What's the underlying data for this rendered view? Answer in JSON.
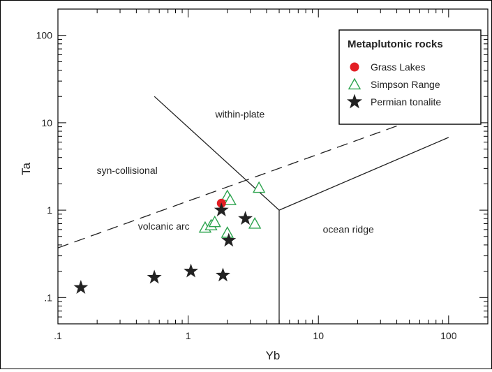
{
  "chart_data": {
    "type": "scatter",
    "title": "",
    "xlabel": "Yb",
    "ylabel": "Ta",
    "xscale": "log",
    "yscale": "log",
    "xlim": [
      0.1,
      200
    ],
    "ylim": [
      0.05,
      200
    ],
    "x_tick_labels": [
      ".1",
      "1",
      "10",
      "100"
    ],
    "x_tick_values": [
      0.1,
      1,
      10,
      100
    ],
    "y_tick_labels": [
      ".1",
      "1",
      "10",
      "100"
    ],
    "y_tick_values": [
      0.1,
      1,
      10,
      100
    ],
    "grid": false,
    "legend": {
      "position": "top-right",
      "title": "Metaplutonic rocks"
    },
    "colors": {
      "grass_lakes": "#e31e24",
      "simpson_range": "#2ea44f",
      "permian_tonalite": "#222222"
    },
    "region_labels": [
      {
        "text": "within-plate",
        "x": 2.5,
        "y": 11.5
      },
      {
        "text": "syn-collisional",
        "x": 0.34,
        "y": 2.6
      },
      {
        "text": "volcanic arc",
        "x": 0.65,
        "y": 0.6
      },
      {
        "text": "ocean ridge",
        "x": 17,
        "y": 0.55
      }
    ],
    "boundaries": [
      {
        "style": "solid",
        "points": [
          [
            0.55,
            20
          ],
          [
            5,
            1
          ]
        ]
      },
      {
        "style": "solid",
        "points": [
          [
            5,
            1
          ],
          [
            5,
            0.05
          ]
        ]
      },
      {
        "style": "solid",
        "points": [
          [
            5,
            1
          ],
          [
            100,
            6.8
          ]
        ]
      },
      {
        "style": "dashed",
        "points": [
          [
            0.1,
            0.37
          ],
          [
            100,
            15
          ]
        ]
      }
    ],
    "series": [
      {
        "name": "Grass Lakes",
        "marker": "circle",
        "points": [
          [
            1.8,
            1.2
          ]
        ]
      },
      {
        "name": "Simpson Range",
        "marker": "triangle",
        "points": [
          [
            2.0,
            1.45
          ],
          [
            2.1,
            1.3
          ],
          [
            3.5,
            1.8
          ],
          [
            1.35,
            0.63
          ],
          [
            1.5,
            0.67
          ],
          [
            1.6,
            0.73
          ],
          [
            2.0,
            0.55
          ],
          [
            3.25,
            0.7
          ]
        ]
      },
      {
        "name": "Permian tonalite",
        "marker": "star",
        "points": [
          [
            0.15,
            0.13
          ],
          [
            0.55,
            0.17
          ],
          [
            1.05,
            0.2
          ],
          [
            1.85,
            0.18
          ],
          [
            2.05,
            0.45
          ],
          [
            2.75,
            0.8
          ],
          [
            1.8,
            1.0
          ]
        ]
      }
    ]
  }
}
